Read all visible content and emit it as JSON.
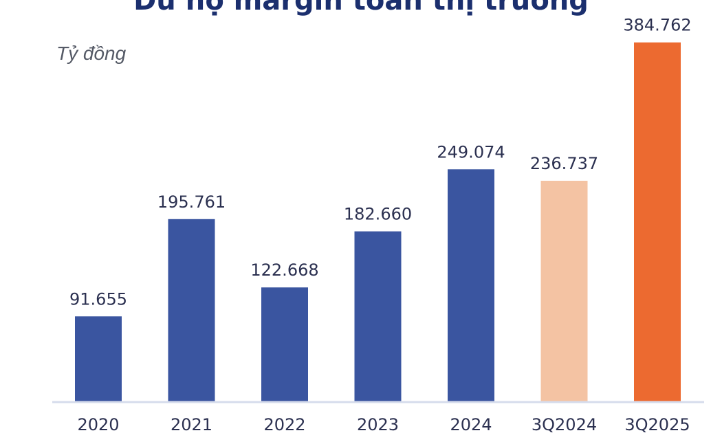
{
  "chart_data": {
    "type": "bar",
    "title": "Dư nợ margin toàn thị trường",
    "ylabel": "Tỷ đồng",
    "xlabel": "",
    "categories": [
      "2020",
      "2021",
      "2022",
      "2023",
      "2024",
      "3Q2024",
      "3Q2025"
    ],
    "values": [
      91655,
      195761,
      122668,
      182660,
      249074,
      236737,
      384762
    ],
    "value_labels": [
      "91.655",
      "195.761",
      "122.668",
      "182.660",
      "249.074",
      "236.737",
      "384.762"
    ],
    "ylim": [
      0,
      400000
    ],
    "grid": false,
    "legend": "none",
    "colors": [
      "#3a55a0",
      "#3a55a0",
      "#3a55a0",
      "#3a55a0",
      "#3a55a0",
      "#f4c3a3",
      "#ec6a30"
    ],
    "axis_color": "#d6dcec"
  }
}
